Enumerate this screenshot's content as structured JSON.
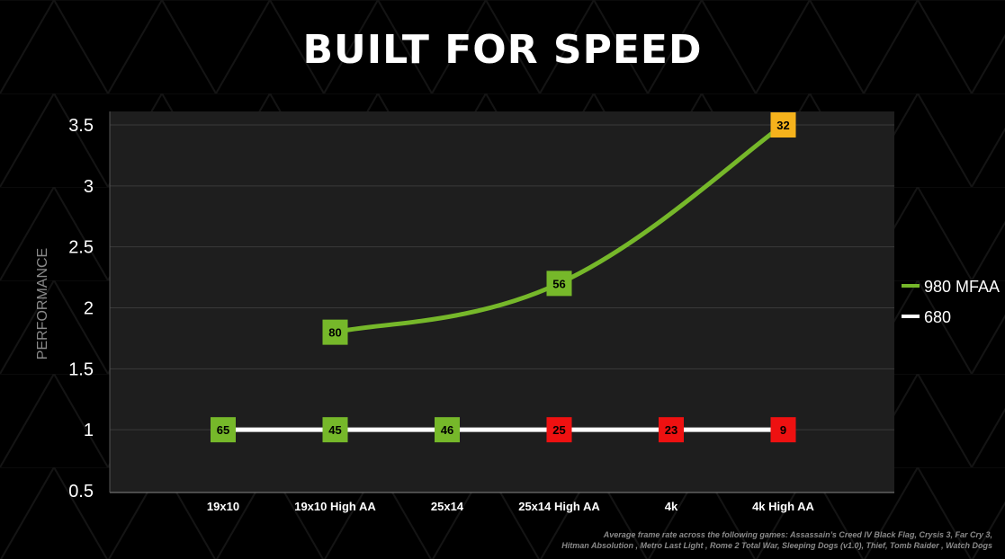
{
  "chart_data": {
    "type": "line",
    "title": "BUILT FOR SPEED",
    "ylabel": "PERFORMANCE",
    "xlabel": "",
    "categories": [
      "19x10",
      "19x10 High AA",
      "25x14",
      "25x14 High AA",
      "4k",
      "4k High AA"
    ],
    "ylim": [
      0.5,
      3.5
    ],
    "yticks": [
      "0.5",
      "1",
      "1.5",
      "2",
      "2.5",
      "3",
      "3.5"
    ],
    "grid": true,
    "legend": "right",
    "series": [
      {
        "name": "980 MFAA",
        "color": "#76b82a",
        "x": [
          "19x10 High AA",
          "25x14 High AA",
          "4k High AA"
        ],
        "values": [
          1.8,
          2.2,
          3.5
        ],
        "labels": [
          "80",
          "56",
          "32"
        ],
        "label_colors": [
          "#76b82a",
          "#76b82a",
          "#f5b21c"
        ]
      },
      {
        "name": "680",
        "color": "#ffffff",
        "x": [
          "19x10",
          "19x10 High AA",
          "25x14",
          "25x14 High AA",
          "4k",
          "4k High AA"
        ],
        "values": [
          1,
          1,
          1,
          1,
          1,
          1
        ],
        "labels": [
          "65",
          "45",
          "46",
          "25",
          "23",
          "9"
        ],
        "label_colors": [
          "#76b82a",
          "#76b82a",
          "#76b82a",
          "#ee1111",
          "#ee1111",
          "#ee1111"
        ]
      }
    ]
  },
  "footnote": {
    "line1": "Average frame rate across the following games: Assassain’s Creed IV Black Flag, Crysis 3, Far Cry 3,",
    "line2": "Hitman Absolution , Metro Last Light , Rome 2 Total War, Sleeping Dogs (v1.0), Thief, Tomb Raider , Watch Dogs"
  },
  "colors": {
    "background": "#000000",
    "plot_background": "#1e1e1e",
    "grid": "#3a3a3a",
    "tick_text": "#ffffff",
    "ylabel_text": "#8a8a8a"
  }
}
